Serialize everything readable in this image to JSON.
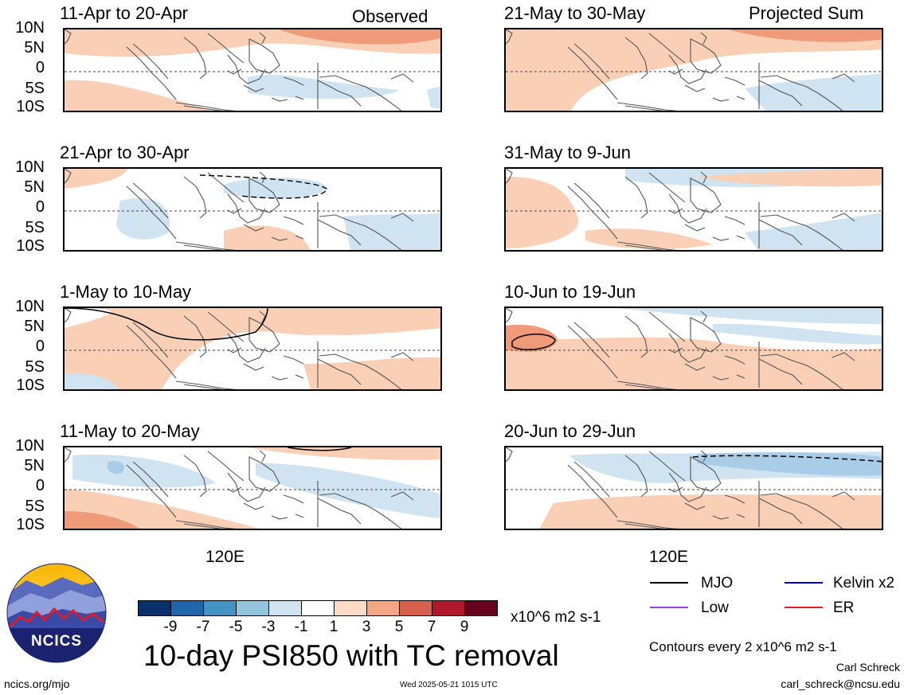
{
  "panels_left": [
    {
      "title": "11-Apr to 20-Apr",
      "tag": "Observed"
    },
    {
      "title": "21-Apr to 30-Apr",
      "tag": ""
    },
    {
      "title": "1-May to 10-May",
      "tag": ""
    },
    {
      "title": "11-May to 20-May",
      "tag": ""
    }
  ],
  "panels_right": [
    {
      "title": "21-May to 30-May",
      "tag": "Projected Sum"
    },
    {
      "title": "31-May to 9-Jun",
      "tag": ""
    },
    {
      "title": "10-Jun to 19-Jun",
      "tag": ""
    },
    {
      "title": "20-Jun to 29-Jun",
      "tag": ""
    }
  ],
  "lat_labels": [
    "10N",
    "5N",
    "0",
    "5S",
    "10S"
  ],
  "lon_label": "120E",
  "colorbar": {
    "ticks": [
      "-9",
      "-7",
      "-5",
      "-3",
      "-1",
      "1",
      "3",
      "5",
      "7",
      "9"
    ],
    "colors": [
      "#08306b",
      "#2166ac",
      "#4393c3",
      "#92c5de",
      "#d1e5f0",
      "#ffffff",
      "#fddbc7",
      "#f4a582",
      "#d6604d",
      "#b2182b",
      "#67001f"
    ],
    "units": "x10^6 m2 s-1"
  },
  "title": "10-day PSI850 with TC removal",
  "legend": [
    {
      "label": "MJO",
      "color": "#000000"
    },
    {
      "label": "Kelvin x2",
      "color": "#0000cc"
    },
    {
      "label": "Low",
      "color": "#a040e0"
    },
    {
      "label": "ER",
      "color": "#e02020"
    }
  ],
  "contour_note": "Contours every 2 x10^6 m2 s-1",
  "author": "Carl Schreck",
  "email": "carl_schreck@ncsu.edu",
  "website": "ncics.org/mjo",
  "timestamp": "Wed 2025-05-21 1015 UTC",
  "logo_text": "NCICS"
}
